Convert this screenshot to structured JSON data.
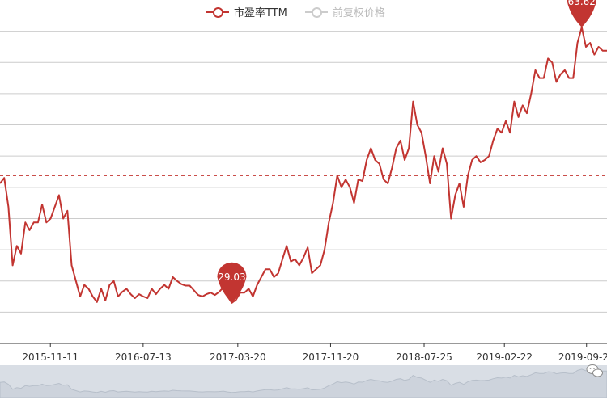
{
  "legend": {
    "active_label": "市盈率TTM",
    "inactive_label": "前复权价格",
    "active_color": "#c23531",
    "inactive_color": "#cccccc"
  },
  "chart_data": {
    "type": "line",
    "series": [
      {
        "name": "市盈率TTM",
        "color": "#c23531",
        "max_value": 63.62,
        "min_value": 29.03,
        "mark_line_average": 45.5,
        "values": [
          44.5,
          45.2,
          41.5,
          34.0,
          36.5,
          35.5,
          39.5,
          38.5,
          39.5,
          39.5,
          41.8,
          39.5,
          40.0,
          41.5,
          43.0,
          40.0,
          41.0,
          34.0,
          32.0,
          30.0,
          31.5,
          31.0,
          30.0,
          29.3,
          31.0,
          29.5,
          31.5,
          32.0,
          30.0,
          30.6,
          31.0,
          30.3,
          29.8,
          30.3,
          30.0,
          29.8,
          31.0,
          30.3,
          31.0,
          31.5,
          31.0,
          32.5,
          32.0,
          31.6,
          31.4,
          31.4,
          30.8,
          30.2,
          30.0,
          30.3,
          30.5,
          30.2,
          30.6,
          31.2,
          30.0,
          29.2,
          29.6,
          30.5,
          30.5,
          31.0,
          30.0,
          31.5,
          32.5,
          33.5,
          33.5,
          32.5,
          33.0,
          34.8,
          36.5,
          34.5,
          34.8,
          34.0,
          35.0,
          36.3,
          33.0,
          33.5,
          34.0,
          36.0,
          39.5,
          42.0,
          45.5,
          44.0,
          45.0,
          44.0,
          42.0,
          45.0,
          44.8,
          47.5,
          49.0,
          47.5,
          47.0,
          45.0,
          44.5,
          46.5,
          49.0,
          50.0,
          47.5,
          49.0,
          55.0,
          52.0,
          51.0,
          48.0,
          44.5,
          48.0,
          46.0,
          49.0,
          47.0,
          40.0,
          43.0,
          44.5,
          41.5,
          45.5,
          47.5,
          48.0,
          47.2,
          47.5,
          48.0,
          50.0,
          51.5,
          51.0,
          52.5,
          51.0,
          55.0,
          53.0,
          54.5,
          53.5,
          56.0,
          59.0,
          58.0,
          58.0,
          60.5,
          60.0,
          57.5,
          58.5,
          59.0,
          58.0,
          58.0,
          62.5,
          64.5,
          62.0,
          62.5,
          61.0,
          62.0,
          61.5,
          61.5
        ]
      }
    ],
    "x_start": "2015-07-01",
    "x_end": "2019-11-20",
    "x_tick_labels": [
      "2015-11-11",
      "2016-07-13",
      "2017-03-20",
      "2017-11-20",
      "2018-07-25",
      "2019-02-22",
      "2019-09-27"
    ],
    "ylim": [
      24,
      68
    ],
    "y_gridlines": [
      28,
      32,
      36,
      40,
      44,
      48,
      52,
      56,
      60,
      64
    ],
    "data_labels": {
      "max": "63.62",
      "min": "29.03"
    }
  }
}
